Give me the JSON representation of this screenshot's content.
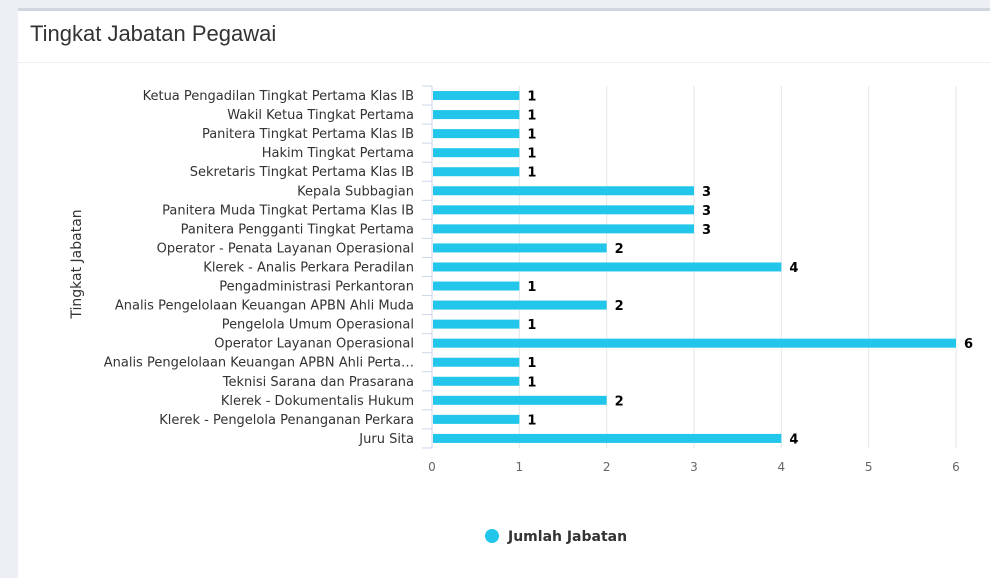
{
  "card": {
    "title": "Tingkat Jabatan Pegawai"
  },
  "colors": {
    "bar": "#22c6ea",
    "grid": "#e6e6e6",
    "axis": "#ccd6eb"
  },
  "chart_data": {
    "type": "bar",
    "orientation": "horizontal",
    "title": "",
    "xlabel": "",
    "ylabel": "Tingkat Jabatan",
    "xlim": [
      0,
      6
    ],
    "x_ticks": [
      "0",
      "1",
      "2",
      "3",
      "4",
      "5",
      "6"
    ],
    "grid": true,
    "legend_position": "bottom-center",
    "categories": [
      "Ketua Pengadilan Tingkat Pertama Klas IB",
      "Wakil Ketua Tingkat Pertama",
      "Panitera Tingkat Pertama Klas IB",
      "Hakim Tingkat Pertama",
      "Sekretaris Tingkat Pertama Klas IB",
      "Kepala Subbagian",
      "Panitera Muda Tingkat Pertama Klas IB",
      "Panitera Pengganti Tingkat Pertama",
      "Operator - Penata Layanan Operasional",
      "Klerek - Analis Perkara Peradilan",
      "Pengadministrasi Perkantoran",
      "Analis Pengelolaan Keuangan APBN Ahli Muda",
      "Pengelola Umum Operasional",
      "Operator Layanan Operasional",
      "Analis Pengelolaan Keuangan APBN Ahli Perta…",
      "Teknisi Sarana dan Prasarana",
      "Klerek - Dokumentalis Hukum",
      "Klerek - Pengelola Penanganan Perkara",
      "Juru Sita"
    ],
    "series": [
      {
        "name": "Jumlah Jabatan",
        "values": [
          1,
          1,
          1,
          1,
          1,
          3,
          3,
          3,
          2,
          4,
          1,
          2,
          1,
          6,
          1,
          1,
          2,
          1,
          4
        ]
      }
    ]
  }
}
